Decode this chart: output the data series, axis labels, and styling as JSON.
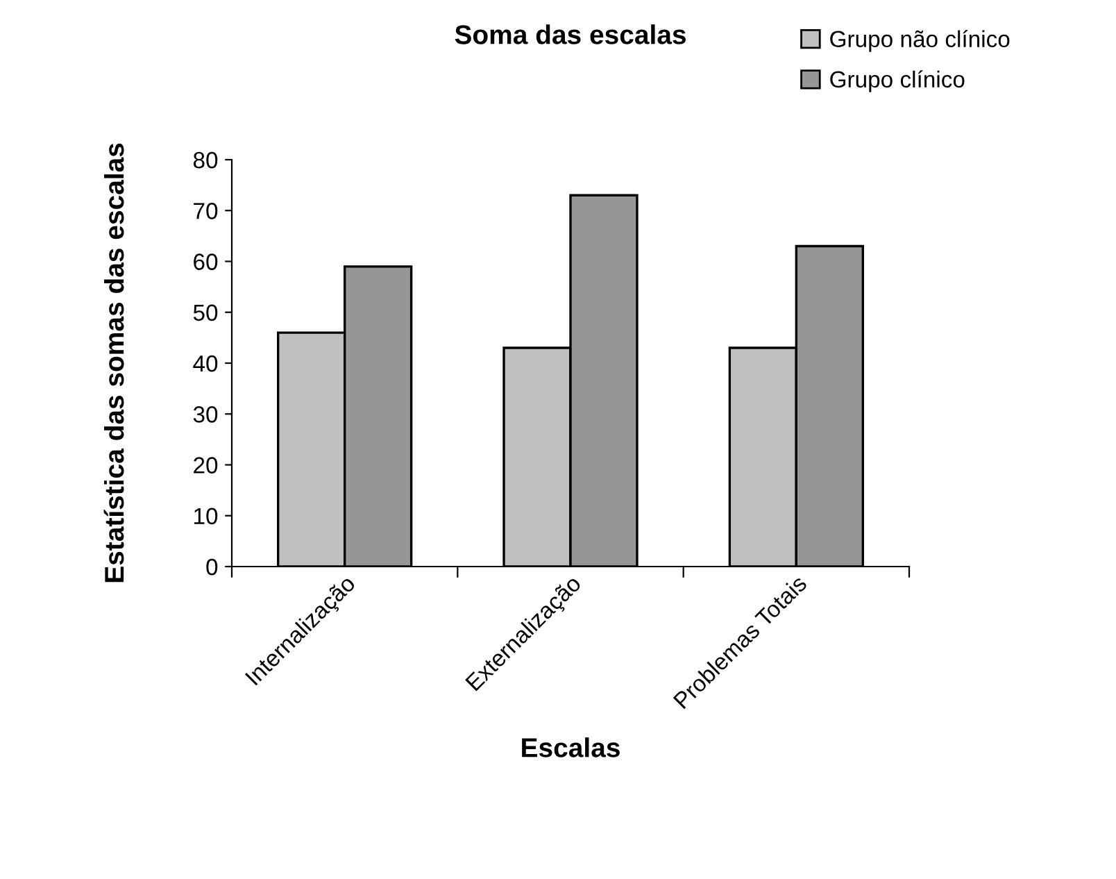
{
  "chart_data": {
    "type": "bar",
    "title": "Soma das escalas",
    "xlabel": "Escalas",
    "ylabel": "Estatística das somas das escalas",
    "categories": [
      "Internalização",
      "Externalização",
      "Problemas Totais"
    ],
    "series": [
      {
        "name": "Grupo não clínico",
        "color": "#c0c0c0",
        "values": [
          46,
          43,
          43
        ]
      },
      {
        "name": "Grupo clínico",
        "color": "#969696",
        "values": [
          59,
          73,
          63
        ]
      }
    ],
    "ylim": [
      0,
      80
    ],
    "yticks": [
      0,
      10,
      20,
      30,
      40,
      50,
      60,
      70,
      80
    ],
    "grid": false,
    "legend": "top right"
  }
}
